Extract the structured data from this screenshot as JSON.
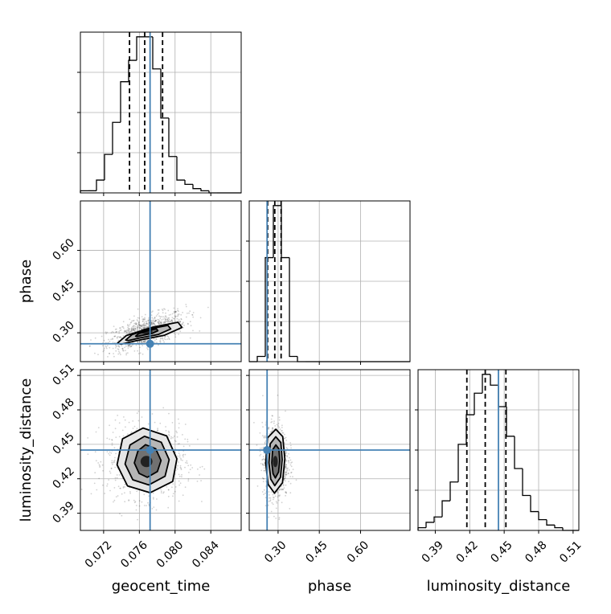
{
  "chart_data": {
    "type": "corner",
    "parameters": [
      "geocent_time",
      "phase",
      "luminosity_distance"
    ],
    "axis_labels": {
      "x": [
        "geocent_time",
        "phase",
        "luminosity_distance"
      ],
      "y": [
        "",
        "phase",
        "luminosity_distance"
      ]
    },
    "ranges": {
      "geocent_time": [
        0.0694,
        0.0874
      ],
      "phase": [
        0.195,
        0.78
      ],
      "luminosity_distance": [
        0.375,
        0.515
      ]
    },
    "ticks": {
      "geocent_time": [
        "0.072",
        "0.076",
        "0.080",
        "0.084"
      ],
      "phase": [
        "0.30",
        "0.45",
        "0.60"
      ],
      "luminosity_distance": [
        "0.39",
        "0.42",
        "0.45",
        "0.48",
        "0.51"
      ]
    },
    "truths": {
      "geocent_time": 0.0772,
      "phase": 0.26,
      "luminosity_distance": 0.445
    },
    "colors": {
      "truth": "#4682b4",
      "hist": "#000000",
      "grid": "#b0b0b0",
      "density": "#000000"
    },
    "grid": true,
    "marginals": {
      "geocent_time": {
        "edges": [
          0.0694,
          0.0703,
          0.0712,
          0.0721,
          0.073,
          0.0739,
          0.0748,
          0.0757,
          0.0766,
          0.0775,
          0.0784,
          0.0793,
          0.0802,
          0.0811,
          0.082,
          0.0829,
          0.0838,
          0.0847,
          0.0856,
          0.0865,
          0.0874
        ],
        "counts": [
          1,
          1,
          6,
          18,
          33,
          52,
          62,
          73,
          73,
          58,
          35,
          17,
          6,
          4,
          2,
          1,
          0,
          0,
          0,
          0
        ],
        "quantiles": [
          0.0749,
          0.0766,
          0.0786
        ]
      },
      "phase": {
        "edges": [
          0.195,
          0.2243,
          0.2535,
          0.2828,
          0.312,
          0.3413,
          0.3705,
          0.3998,
          0.429,
          0.4583,
          0.4875,
          0.5168,
          0.546,
          0.5753,
          0.6045,
          0.6338,
          0.663,
          0.6923,
          0.7215,
          0.7508,
          0.78
        ],
        "counts": [
          0,
          2,
          40,
          60,
          40,
          2,
          0,
          0,
          0,
          0,
          0,
          0,
          0,
          0,
          0,
          0,
          0,
          0,
          0,
          0
        ],
        "quantiles": [
          0.262,
          0.288,
          0.311
        ]
      },
      "luminosity_distance": {
        "edges": [
          0.375,
          0.382,
          0.389,
          0.396,
          0.403,
          0.41,
          0.417,
          0.424,
          0.431,
          0.438,
          0.445,
          0.452,
          0.459,
          0.466,
          0.473,
          0.48,
          0.487,
          0.494,
          0.501,
          0.508,
          0.515
        ],
        "counts": [
          1,
          3,
          5,
          11,
          18,
          32,
          43,
          51,
          58,
          54,
          46,
          35,
          23,
          13,
          7,
          4,
          2,
          1,
          0,
          0
        ],
        "quantiles": [
          0.4175,
          0.4335,
          0.4515
        ]
      }
    },
    "pairs": [
      {
        "x": "geocent_time",
        "y": "phase",
        "center": [
          0.0768,
          0.305
        ],
        "sigma": [
          0.0019,
          0.03
        ],
        "corr": 0.6,
        "contours": [
          [
            [
              0.07353,
              0.2617
            ],
            [
              0.07455,
              0.2902
            ],
            [
              0.07758,
              0.3211
            ],
            [
              0.08033,
              0.3383
            ],
            [
              0.08078,
              0.3197
            ],
            [
              0.07882,
              0.2912
            ],
            [
              0.07568,
              0.2713
            ],
            [
              0.07397,
              0.2585
            ]
          ],
          [
            [
              0.07448,
              0.2738
            ],
            [
              0.07519,
              0.2936
            ],
            [
              0.0773,
              0.3151
            ],
            [
              0.0792,
              0.327
            ],
            [
              0.07952,
              0.3141
            ],
            [
              0.07815,
              0.2943
            ],
            [
              0.07597,
              0.2805
            ],
            [
              0.07478,
              0.2716
            ]
          ],
          [
            [
              0.07558,
              0.2876
            ],
            [
              0.07593,
              0.2975
            ],
            [
              0.07697,
              0.3081
            ],
            [
              0.07792,
              0.314
            ],
            [
              0.07808,
              0.3076
            ],
            [
              0.0774,
              0.2978
            ],
            [
              0.07632,
              0.291
            ],
            [
              0.07573,
              0.2866
            ]
          ]
        ]
      },
      {
        "x": "geocent_time",
        "y": "luminosity_distance",
        "center": [
          0.0768,
          0.435
        ],
        "sigma": [
          0.0019,
          0.014
        ],
        "corr": 0.0,
        "contours": [
          [
            [
              0.0802,
              0.4374
            ],
            [
              0.07906,
              0.4573
            ],
            [
              0.07642,
              0.4642
            ],
            [
              0.07412,
              0.4547
            ],
            [
              0.0735,
              0.4322
            ],
            [
              0.07467,
              0.4138
            ],
            [
              0.07721,
              0.4078
            ],
            [
              0.07973,
              0.4176
            ]
          ],
          [
            [
              0.07934,
              0.4366
            ],
            [
              0.07845,
              0.4518
            ],
            [
              0.07657,
              0.457
            ],
            [
              0.07495,
              0.4494
            ],
            [
              0.0744,
              0.4329
            ],
            [
              0.07527,
              0.4191
            ],
            [
              0.07705,
              0.4146
            ],
            [
              0.07888,
              0.4222
            ]
          ],
          [
            [
              0.07843,
              0.4359
            ],
            [
              0.07782,
              0.4462
            ],
            [
              0.07669,
              0.4497
            ],
            [
              0.07584,
              0.4442
            ],
            [
              0.07544,
              0.4338
            ],
            [
              0.07598,
              0.4246
            ],
            [
              0.0769,
              0.4213
            ],
            [
              0.07802,
              0.4263
            ]
          ]
        ]
      },
      {
        "x": "phase",
        "y": "luminosity_distance",
        "center": [
          0.29,
          0.435
        ],
        "sigma": [
          0.02,
          0.014
        ],
        "corr": 0.0,
        "contours": [
          [
            [
              0.3246,
              0.4374
            ],
            [
              0.3171,
              0.4567
            ],
            [
              0.2917,
              0.4631
            ],
            [
              0.2614,
              0.4556
            ],
            [
              0.2551,
              0.4335
            ],
            [
              0.2638,
              0.4151
            ],
            [
              0.2868,
              0.4075
            ],
            [
              0.3162,
              0.4165
            ]
          ],
          [
            [
              0.3148,
              0.4367
            ],
            [
              0.3099,
              0.4516
            ],
            [
              0.2914,
              0.4566
            ],
            [
              0.2712,
              0.4504
            ],
            [
              0.2667,
              0.434
            ],
            [
              0.2735,
              0.4197
            ],
            [
              0.2881,
              0.414
            ],
            [
              0.3089,
              0.4213
            ]
          ],
          [
            [
              0.3061,
              0.4358
            ],
            [
              0.3029,
              0.446
            ],
            [
              0.2918,
              0.4495
            ],
            [
              0.2801,
              0.4452
            ],
            [
              0.2772,
              0.434
            ],
            [
              0.2815,
              0.4245
            ],
            [
              0.29,
              0.4207
            ],
            [
              0.3018,
              0.4259
            ]
          ]
        ]
      }
    ]
  }
}
